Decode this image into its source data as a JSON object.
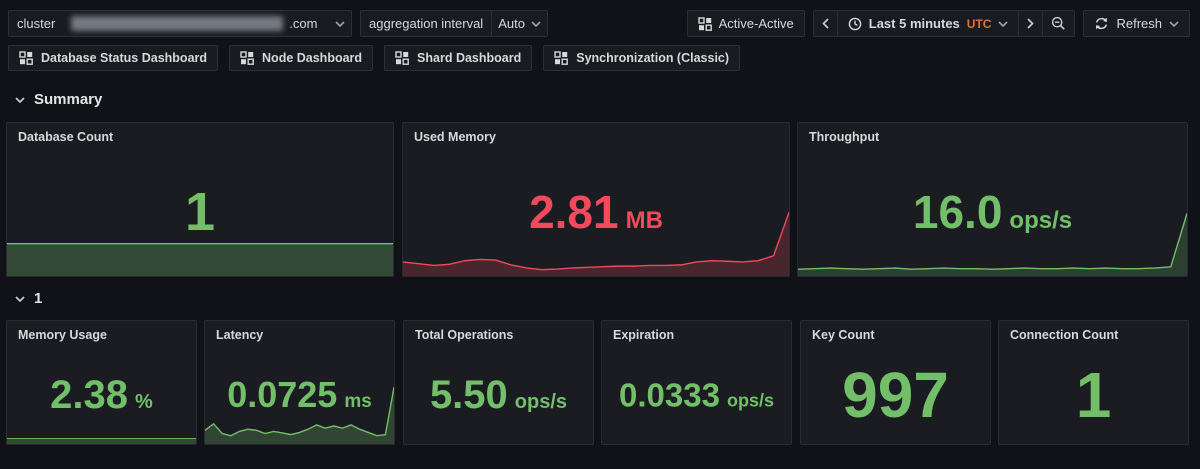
{
  "toolbar": {
    "cluster": {
      "label": "cluster",
      "value_suffix": ".com"
    },
    "aggregation": {
      "label": "aggregation interval",
      "value": "Auto"
    },
    "active_active": {
      "label": "Active-Active"
    },
    "time_picker": {
      "range": "Last 5 minutes",
      "timezone": "UTC"
    },
    "refresh": {
      "label": "Refresh"
    }
  },
  "dashboard_links": [
    {
      "label": "Database Status Dashboard"
    },
    {
      "label": "Node Dashboard"
    },
    {
      "label": "Shard Dashboard"
    },
    {
      "label": "Synchronization (Classic)"
    }
  ],
  "sections": [
    {
      "title": "Summary"
    },
    {
      "title": "1"
    }
  ],
  "panels": [
    {
      "title": "Database Count",
      "value": "1",
      "unit": "",
      "color": "#73BF69",
      "spark": {
        "color": "#73BF69",
        "fill_opacity": 0.28,
        "values": [
          1,
          1
        ]
      }
    },
    {
      "title": "Used Memory",
      "value": "2.81",
      "unit": "MB",
      "color": "#F2495C",
      "spark": {
        "color": "#F2495C",
        "fill_opacity": 0.22,
        "values": [
          0.18,
          0.15,
          0.12,
          0.14,
          0.2,
          0.22,
          0.21,
          0.13,
          0.08,
          0.05,
          0.06,
          0.08,
          0.09,
          0.1,
          0.11,
          0.11,
          0.12,
          0.12,
          0.13,
          0.18,
          0.2,
          0.19,
          0.18,
          0.2,
          0.28,
          1.0
        ]
      }
    },
    {
      "title": "Throughput",
      "value": "16.0",
      "unit": "ops/s",
      "color": "#73BF69",
      "spark": {
        "color": "#73BF69",
        "fill_opacity": 0.22,
        "values": [
          0.06,
          0.07,
          0.08,
          0.07,
          0.06,
          0.07,
          0.08,
          0.06,
          0.07,
          0.08,
          0.07,
          0.07,
          0.06,
          0.07,
          0.08,
          0.07,
          0.07,
          0.08,
          0.07,
          0.08,
          0.07,
          0.07,
          0.08,
          0.1,
          1.0
        ]
      }
    },
    {
      "title": "Memory Usage",
      "value": "2.38",
      "unit": "%",
      "color": "#73BF69",
      "spark": {
        "color": "#73BF69",
        "fill_opacity": 0.28,
        "values": [
          1,
          1
        ]
      }
    },
    {
      "title": "Latency",
      "value": "0.0725",
      "unit": "ms",
      "color": "#73BF69",
      "spark": {
        "color": "#73BF69",
        "fill_opacity": 0.25,
        "values": [
          0.2,
          0.32,
          0.14,
          0.1,
          0.18,
          0.22,
          0.2,
          0.14,
          0.18,
          0.15,
          0.12,
          0.16,
          0.22,
          0.3,
          0.24,
          0.28,
          0.24,
          0.3,
          0.22,
          0.16,
          0.1,
          0.12,
          1.0
        ]
      }
    },
    {
      "title": "Total Operations",
      "value": "5.50",
      "unit": "ops/s",
      "color": "#73BF69"
    },
    {
      "title": "Expiration",
      "value": "0.0333",
      "unit": "ops/s",
      "color": "#73BF69"
    },
    {
      "title": "Key Count",
      "value": "997",
      "unit": "",
      "color": "#73BF69"
    },
    {
      "title": "Connection Count",
      "value": "1",
      "unit": "",
      "color": "#73BF69"
    }
  ],
  "colors": {
    "green": "#73BF69",
    "red": "#F2495C",
    "utc_orange": "#d9763a",
    "page_bg": "#111217",
    "panel_bg": "#1a1c22",
    "border": "#2c3036"
  }
}
